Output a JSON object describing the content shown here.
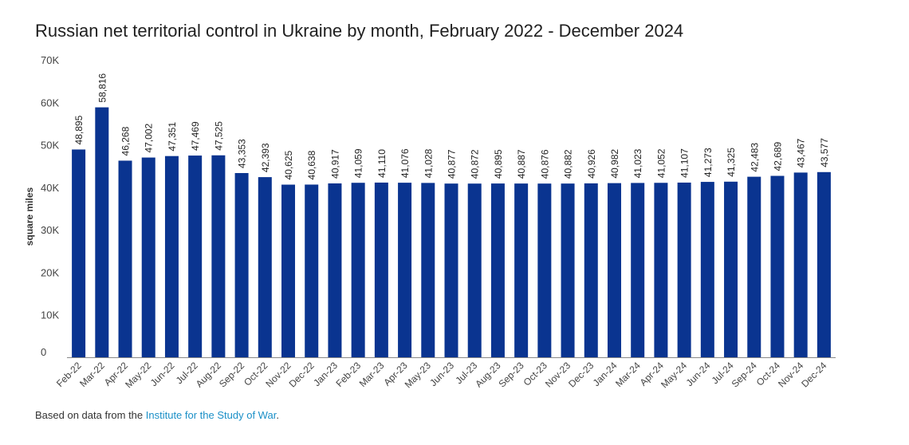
{
  "title": "Russian net territorial control in Ukraine by month, February 2022 - December 2024",
  "source": {
    "prefix": "Based on data from the ",
    "link_text": "Institute for the Study of War",
    "suffix": "."
  },
  "chart_data": {
    "type": "bar",
    "title": "Russian net territorial control in Ukraine by month, February 2022 - December 2024",
    "xlabel": "",
    "ylabel": "square miles",
    "ylim": [
      0,
      70000
    ],
    "yticks": [
      0,
      10000,
      20000,
      30000,
      40000,
      50000,
      60000,
      70000
    ],
    "ytick_labels": [
      "0",
      "10K",
      "20K",
      "30K",
      "40K",
      "50K",
      "60K",
      "70K"
    ],
    "grid": false,
    "bar_color": "#0a3490",
    "categories": [
      "Feb-22",
      "Mar-22",
      "Apr-22",
      "May-22",
      "Jun-22",
      "Jul-22",
      "Aug-22",
      "Sep-22",
      "Oct-22",
      "Nov-22",
      "Dec-22",
      "Jan-23",
      "Feb-23",
      "Mar-23",
      "Apr-23",
      "May-23",
      "Jun-23",
      "Jul-23",
      "Aug-23",
      "Sep-23",
      "Oct-23",
      "Nov-23",
      "Dec-23",
      "Jan-24",
      "Mar-24",
      "Apr-24",
      "May-24",
      "Jun-24",
      "Jul-24",
      "Sep-24",
      "Oct-24",
      "Nov-24",
      "Dec-24"
    ],
    "values": [
      48895,
      58816,
      46268,
      47002,
      47351,
      47469,
      47525,
      43353,
      42393,
      40625,
      40638,
      40917,
      41059,
      41110,
      41076,
      41028,
      40877,
      40872,
      40895,
      40887,
      40876,
      40882,
      40926,
      40982,
      41023,
      41052,
      41107,
      41273,
      41325,
      42483,
      42689,
      43467,
      43577
    ],
    "value_labels": [
      "48,895",
      "58,816",
      "46,268",
      "47,002",
      "47,351",
      "47,469",
      "47,525",
      "43,353",
      "42,393",
      "40,625",
      "40,638",
      "40,917",
      "41,059",
      "41,110",
      "41,076",
      "41,028",
      "40,877",
      "40,872",
      "40,895",
      "40,887",
      "40,876",
      "40,882",
      "40,926",
      "40,982",
      "41,023",
      "41,052",
      "41,107",
      "41,273",
      "41,325",
      "42,483",
      "42,689",
      "43,467",
      "43,577"
    ]
  }
}
